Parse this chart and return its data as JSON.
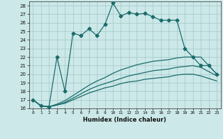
{
  "title": "",
  "xlabel": "Humidex (Indice chaleur)",
  "bg_color": "#cce8e8",
  "grid_color": "#aacccc",
  "line_color": "#1a6b6b",
  "xlim": [
    -0.5,
    23.5
  ],
  "ylim": [
    16,
    28.5
  ],
  "xticks": [
    0,
    1,
    2,
    3,
    4,
    5,
    6,
    7,
    8,
    9,
    10,
    11,
    12,
    13,
    14,
    15,
    16,
    17,
    18,
    19,
    20,
    21,
    22,
    23
  ],
  "yticks": [
    16,
    17,
    18,
    19,
    20,
    21,
    22,
    23,
    24,
    25,
    26,
    27,
    28
  ],
  "x": [
    0,
    1,
    2,
    3,
    4,
    5,
    6,
    7,
    8,
    9,
    10,
    11,
    12,
    13,
    14,
    15,
    16,
    17,
    18,
    19,
    20,
    21,
    22,
    23
  ],
  "y_main": [
    17.0,
    16.3,
    16.2,
    22.0,
    18.0,
    24.8,
    24.5,
    25.3,
    24.5,
    25.8,
    28.3,
    26.8,
    27.2,
    27.0,
    27.1,
    26.7,
    26.3,
    26.3,
    26.3,
    23.0,
    22.0,
    21.0,
    21.0,
    20.0
  ],
  "y_line2": [
    17.0,
    16.3,
    16.2,
    16.5,
    16.9,
    17.5,
    18.1,
    18.7,
    19.2,
    19.6,
    20.1,
    20.5,
    20.8,
    21.1,
    21.3,
    21.5,
    21.6,
    21.7,
    21.9,
    22.0,
    22.0,
    22.0,
    21.0,
    20.0
  ],
  "y_line3": [
    17.0,
    16.3,
    16.2,
    16.4,
    16.7,
    17.2,
    17.7,
    18.2,
    18.6,
    18.9,
    19.2,
    19.5,
    19.8,
    20.0,
    20.2,
    20.4,
    20.5,
    20.6,
    20.8,
    20.9,
    21.0,
    20.8,
    20.3,
    19.8
  ],
  "y_line4": [
    17.0,
    16.3,
    16.2,
    16.4,
    16.6,
    17.0,
    17.4,
    17.8,
    18.1,
    18.4,
    18.6,
    18.9,
    19.1,
    19.2,
    19.4,
    19.5,
    19.6,
    19.7,
    19.9,
    20.0,
    20.0,
    19.8,
    19.5,
    19.2
  ],
  "marker": "D",
  "marker_size": 2.5,
  "linewidth": 0.9
}
